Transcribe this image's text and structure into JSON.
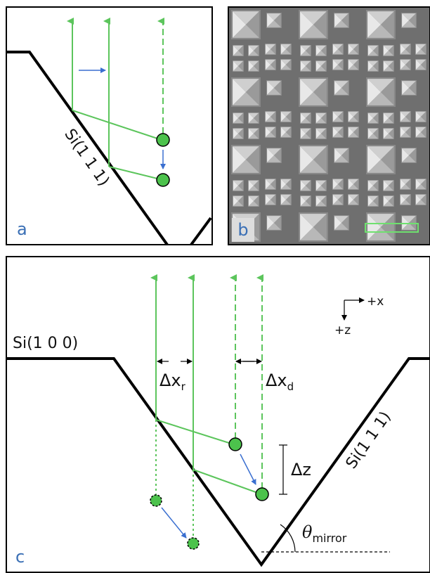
{
  "panel_a": {
    "label": "a",
    "surface_label": "Si(1 1 1)"
  },
  "panel_b": {
    "label": "b"
  },
  "panel_c": {
    "label": "c",
    "top_surface_label": "Si(1 0 0)",
    "side_surface_label": "Si(1 1 1)",
    "axes": {
      "x": "+x",
      "z": "+z"
    },
    "dx_r": {
      "symbol": "Δx",
      "subscript": "r"
    },
    "dx_d": {
      "symbol": "Δx",
      "subscript": "d"
    },
    "dz": "Δz",
    "theta": {
      "symbol": "θ",
      "subscript": "mirror"
    }
  }
}
